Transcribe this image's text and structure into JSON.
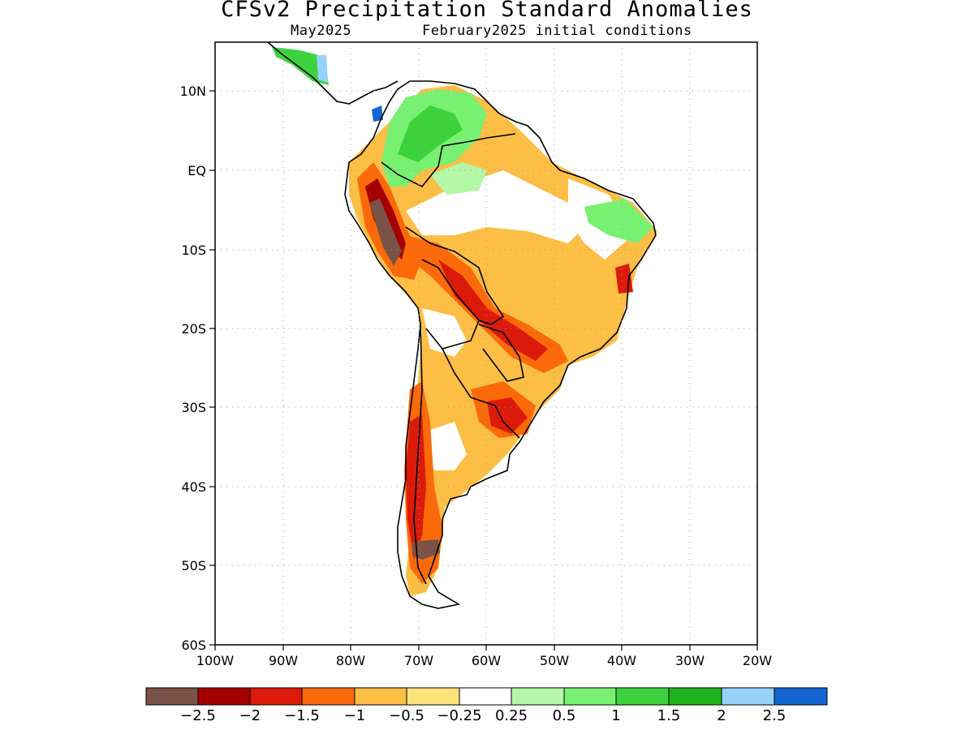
{
  "title": "CFSv2 Precipitation Standard Anomalies",
  "subtitle_left": "May2025",
  "subtitle_right": "February2025 initial conditions",
  "map": {
    "lat_ticks": [
      "10N",
      "EQ",
      "10S",
      "20S",
      "30S",
      "40S",
      "50S",
      "60S"
    ],
    "lon_ticks": [
      "100W",
      "90W",
      "80W",
      "70W",
      "60W",
      "50W",
      "40W",
      "30W",
      "20W"
    ],
    "lon_range": [
      -100,
      -20
    ],
    "lat_range": [
      -60,
      15
    ],
    "grid": "dotted"
  },
  "colorbar": {
    "colors": [
      "#7a5246",
      "#a50000",
      "#dc1a0a",
      "#fa6a0a",
      "#fcbe45",
      "#fde47a",
      "#ffffff",
      "#b4f7a6",
      "#78f072",
      "#3dd23d",
      "#1eb41e",
      "#96d2fa",
      "#1464d2"
    ],
    "labels": [
      "−2.5",
      "−2",
      "−1.5",
      "−1",
      "−0.5",
      "−0.25",
      "0.25",
      "0.5",
      "1",
      "1.5",
      "2",
      "2.5"
    ]
  }
}
